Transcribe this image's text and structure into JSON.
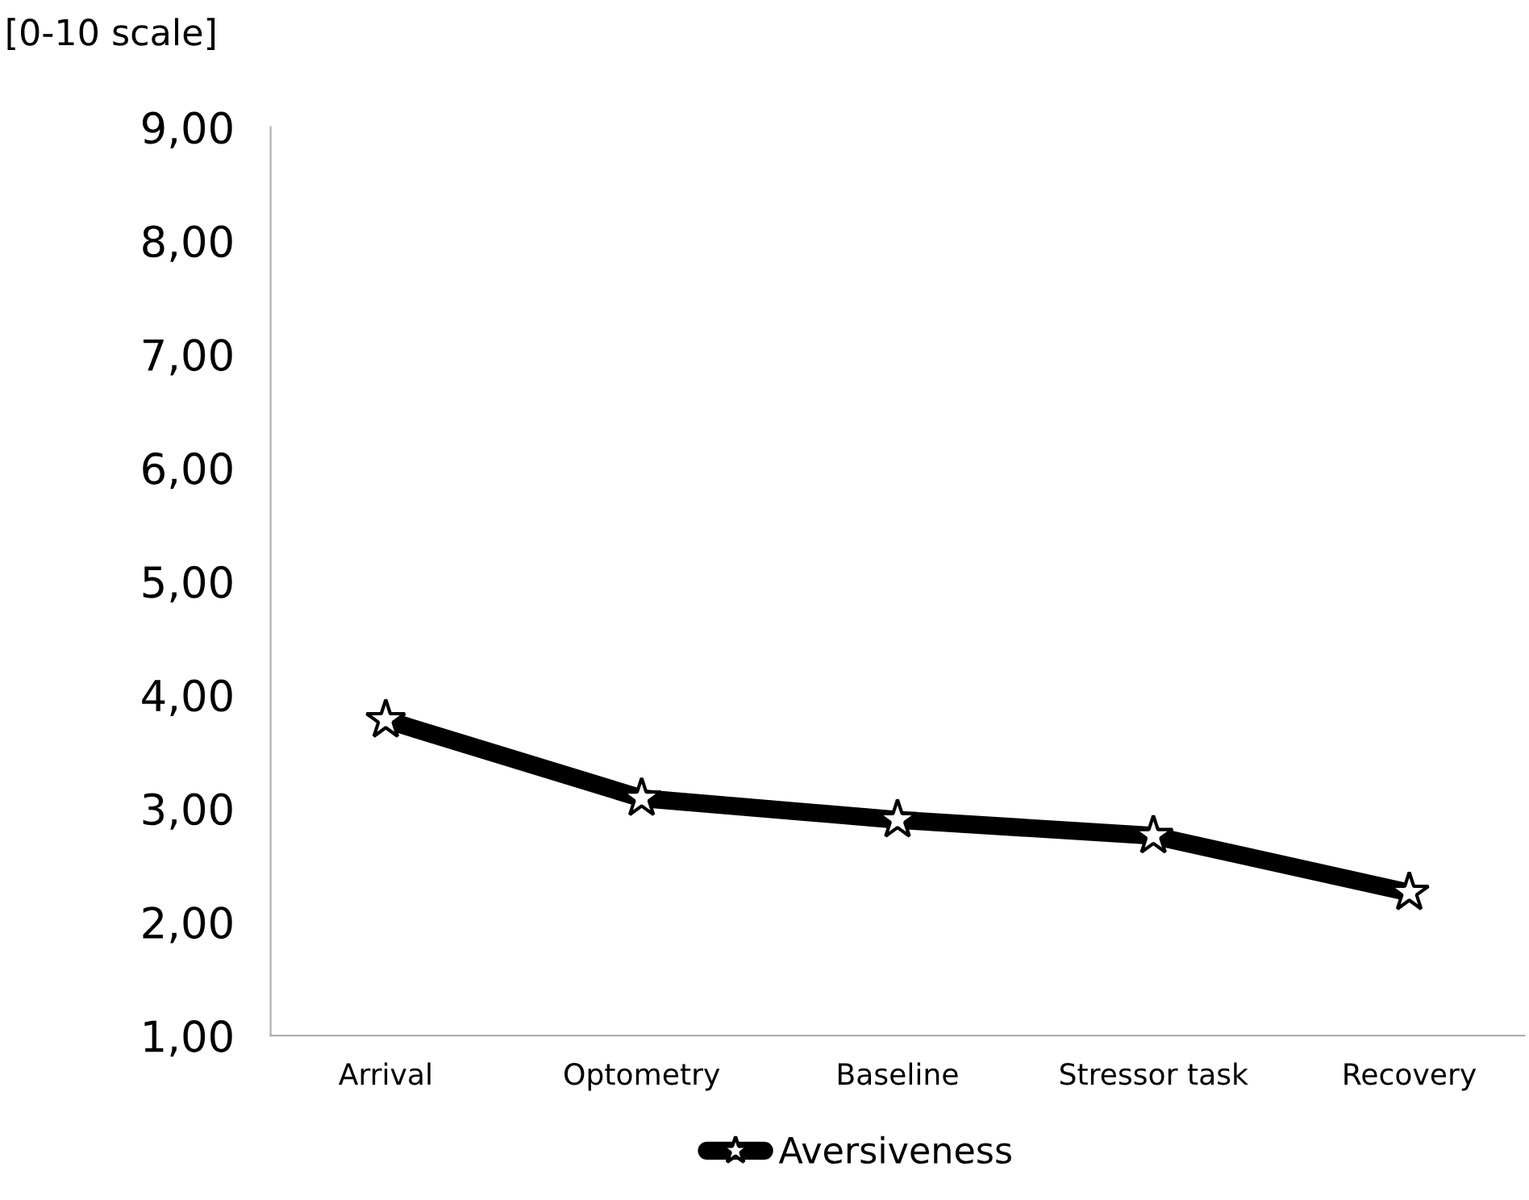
{
  "chart_data": {
    "type": "line",
    "ylabel": "[0-10 scale]",
    "categories": [
      "Arrival",
      "Optometry",
      "Baseline",
      "Stressor task",
      "Recovery"
    ],
    "series": [
      {
        "name": "Aversiveness",
        "color": "#000000",
        "values": [
          3.78,
          3.09,
          2.9,
          2.76,
          2.26
        ]
      }
    ],
    "ylim": [
      1,
      9
    ],
    "yticks": [
      {
        "value": 1,
        "label": "1,00"
      },
      {
        "value": 2,
        "label": "2,00"
      },
      {
        "value": 3,
        "label": "3,00"
      },
      {
        "value": 4,
        "label": "4,00"
      },
      {
        "value": 5,
        "label": "5,00"
      },
      {
        "value": 6,
        "label": "6,00"
      },
      {
        "value": 7,
        "label": "7,00"
      },
      {
        "value": 8,
        "label": "8,00"
      },
      {
        "value": 9,
        "label": "9,00"
      }
    ],
    "grid": false,
    "legend": "bottom",
    "marker": "star",
    "line_style": "solid"
  }
}
